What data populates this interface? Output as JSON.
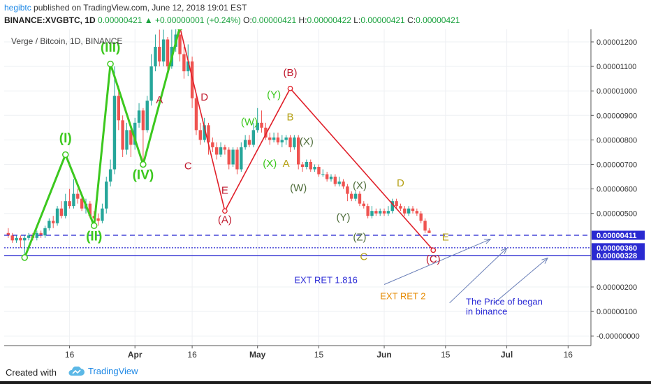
{
  "header": {
    "user": "hegibtc",
    "published": "published on TradingView.com, June 12, 2018 19:01 EST",
    "symbol": "BINANCE:XVGBTC, 1D",
    "last": "0.00000421",
    "change": "+0.00000001 (+0.24%)",
    "o_label": "O:",
    "o": "0.00000421",
    "h_label": "H:",
    "h": "0.00000422",
    "l_label": "L:",
    "l": "0.00000421",
    "c_label": "C:",
    "c": "0.00000421"
  },
  "footer": {
    "created_with": "Created with",
    "brand": "TradingView"
  },
  "chart_data": {
    "type": "candlestick",
    "title": "Verge / Bitcoin, 1D, BINANCE",
    "ylim": [
      -1e-07,
      1.25e-06
    ],
    "y_ticks": [
      "0.00001200",
      "0.00001100",
      "0.00001000",
      "0.00000900",
      "0.00000800",
      "0.00000700",
      "0.00000600",
      "0.00000500",
      "0.00000200",
      "0.00000100",
      "-0.00000000"
    ],
    "y_tick_values": [
      1.2e-05,
      1.1e-05,
      1e-05,
      9e-06,
      8e-06,
      7e-06,
      6e-06,
      5e-06,
      2e-06,
      1e-06,
      0.0
    ],
    "x_ticks": [
      "16",
      "Apr",
      "16",
      "May",
      "15",
      "Jun",
      "15",
      "Jul",
      "16"
    ],
    "x_tick_days": [
      16,
      32,
      46,
      62,
      77,
      93,
      108,
      123,
      138
    ],
    "price_levels": [
      {
        "label": "0.00000411",
        "value": 4.11e-06,
        "style": "dashed"
      },
      {
        "label": "0.00000360",
        "value": 3.6e-06,
        "style": "dotted"
      },
      {
        "label": "0.00000328",
        "value": 3.28e-06,
        "style": "solid"
      }
    ],
    "candles": [
      [
        1,
        4.2e-06,
        4.1e-06,
        4.4e-06,
        4e-06
      ],
      [
        2,
        4.1e-06,
        3.9e-06,
        4.2e-06,
        3.8e-06
      ],
      [
        3,
        3.9e-06,
        4e-06,
        4.1e-06,
        3.8e-06
      ],
      [
        4,
        4e-06,
        3.9e-06,
        4.1e-06,
        3.6e-06
      ],
      [
        5,
        3.9e-06,
        4e-06,
        4.1e-06,
        3.2e-06
      ],
      [
        6,
        4e-06,
        4.1e-06,
        4.2e-06,
        3.9e-06
      ],
      [
        7,
        4.1e-06,
        4e-06,
        4.2e-06,
        3.9e-06
      ],
      [
        8,
        4e-06,
        4.2e-06,
        4.3e-06,
        3.9e-06
      ],
      [
        9,
        4.2e-06,
        4.1e-06,
        4.3e-06,
        4e-06
      ],
      [
        10,
        4.1e-06,
        4.4e-06,
        4.5e-06,
        4e-06
      ],
      [
        11,
        4.4e-06,
        4.7e-06,
        4.8e-06,
        4.3e-06
      ],
      [
        12,
        4.7e-06,
        4.6e-06,
        4.9e-06,
        4.4e-06
      ],
      [
        13,
        4.6e-06,
        5.2e-06,
        5.3e-06,
        4.5e-06
      ],
      [
        14,
        5.2e-06,
        4.9e-06,
        5.5e-06,
        4.8e-06
      ],
      [
        15,
        4.9e-06,
        5.5e-06,
        5.8e-06,
        4.8e-06
      ],
      [
        16,
        5.5e-06,
        5.3e-06,
        6e-06,
        5.2e-06
      ],
      [
        17,
        5.3e-06,
        5.8e-06,
        6.4e-06,
        5.2e-06
      ],
      [
        18,
        5.8e-06,
        5.6e-06,
        6e-06,
        5.4e-06
      ],
      [
        19,
        5.6e-06,
        5.2e-06,
        5.8e-06,
        5.1e-06
      ],
      [
        20,
        5.2e-06,
        5.4e-06,
        5.6e-06,
        5e-06
      ],
      [
        21,
        5.4e-06,
        4.9e-06,
        5.5e-06,
        4.8e-06
      ],
      [
        22,
        4.9e-06,
        4.8e-06,
        5.1e-06,
        4.6e-06
      ],
      [
        23,
        4.8e-06,
        4.7e-06,
        5e-06,
        4.5e-06
      ],
      [
        24,
        4.7e-06,
        5.2e-06,
        5.4e-06,
        4.6e-06
      ],
      [
        25,
        5.2e-06,
        6.3e-06,
        6.5e-06,
        5e-06
      ],
      [
        26,
        6.3e-06,
        6.8e-06,
        7.2e-06,
        6.1e-06
      ],
      [
        27,
        6.8e-06,
        9.8e-06,
        1.1e-05,
        6.6e-06
      ],
      [
        28,
        9.8e-06,
        8.8e-06,
        1.02e-05,
        8.4e-06
      ],
      [
        29,
        8.8e-06,
        7.6e-06,
        9e-06,
        7.3e-06
      ],
      [
        30,
        7.6e-06,
        8.4e-06,
        8.7e-06,
        7.4e-06
      ],
      [
        31,
        8.4e-06,
        7.8e-06,
        8.6e-06,
        7.3e-06
      ],
      [
        32,
        7.8e-06,
        8.7e-06,
        8.9e-06,
        7.6e-06
      ],
      [
        33,
        8.7e-06,
        9.2e-06,
        9.5e-06,
        8.5e-06
      ],
      [
        34,
        9.2e-06,
        8.4e-06,
        9.3e-06,
        7.1e-06
      ],
      [
        35,
        8.4e-06,
        9.6e-06,
        9.8e-06,
        8.3e-06
      ],
      [
        36,
        9.6e-06,
        1.1e-05,
        1.15e-05,
        9.4e-06
      ],
      [
        37,
        1.1e-05,
        1.18e-05,
        1.23e-05,
        1.08e-05
      ],
      [
        38,
        1.18e-05,
        1.12e-05,
        1.25e-05,
        1.1e-05
      ],
      [
        39,
        1.12e-05,
        1.21e-05,
        1.25e-05,
        1.1e-05
      ],
      [
        40,
        1.21e-05,
        1.1e-05,
        1.22e-05,
        1.08e-05
      ],
      [
        41,
        1.1e-05,
        1.18e-05,
        1.25e-05,
        1.09e-05
      ],
      [
        42,
        1.18e-05,
        1.23e-05,
        1.28e-05,
        1.16e-05
      ],
      [
        43,
        1.23e-05,
        1.15e-05,
        1.26e-05,
        1.12e-05
      ],
      [
        44,
        1.15e-05,
        1.08e-05,
        1.18e-05,
        1.05e-05
      ],
      [
        45,
        1.08e-05,
        1.12e-05,
        1.19e-05,
        1.06e-05
      ],
      [
        46,
        1.12e-05,
        9.7e-06,
        1.14e-05,
        9.3e-06
      ],
      [
        47,
        9.7e-06,
        8.4e-06,
        9.9e-06,
        8.2e-06
      ],
      [
        48,
        8.4e-06,
        8e-06,
        8.7e-06,
        7.8e-06
      ],
      [
        49,
        8e-06,
        8.6e-06,
        8.9e-06,
        7.9e-06
      ],
      [
        50,
        8.6e-06,
        7.9e-06,
        8.7e-06,
        7.4e-06
      ],
      [
        51,
        7.9e-06,
        7.7e-06,
        8.1e-06,
        7.5e-06
      ],
      [
        52,
        7.7e-06,
        7.4e-06,
        7.9e-06,
        7.2e-06
      ],
      [
        53,
        7.4e-06,
        7.7e-06,
        7.9e-06,
        7.3e-06
      ],
      [
        54,
        7.7e-06,
        7.6e-06,
        7.8e-06,
        7.4e-06
      ],
      [
        55,
        7.6e-06,
        7e-06,
        7.7e-06,
        6.8e-06
      ],
      [
        56,
        7e-06,
        7.6e-06,
        7.7e-06,
        6.9e-06
      ],
      [
        57,
        7.6e-06,
        6.8e-06,
        7.7e-06,
        6.6e-06
      ],
      [
        58,
        6.8e-06,
        7.7e-06,
        7.9e-06,
        6.7e-06
      ],
      [
        59,
        7.7e-06,
        8e-06,
        8.2e-06,
        7.6e-06
      ],
      [
        60,
        8e-06,
        7.8e-06,
        8.2e-06,
        7.7e-06
      ],
      [
        61,
        7.8e-06,
        8.4e-06,
        8.7e-06,
        7.7e-06
      ],
      [
        62,
        8.4e-06,
        8.7e-06,
        9.3e-06,
        8.3e-06
      ],
      [
        63,
        8.7e-06,
        8.5e-06,
        9.2e-06,
        8.3e-06
      ],
      [
        64,
        8.5e-06,
        8.1e-06,
        8.7e-06,
        8e-06
      ],
      [
        65,
        8.1e-06,
        8e-06,
        8.3e-06,
        7.8e-06
      ],
      [
        66,
        8e-06,
        8.1e-06,
        8.3e-06,
        7.9e-06
      ],
      [
        67,
        8.1e-06,
        7.9e-06,
        8.3e-06,
        7.8e-06
      ],
      [
        68,
        7.9e-06,
        8e-06,
        8.2e-06,
        7.7e-06
      ],
      [
        69,
        8e-06,
        8.1e-06,
        8.2e-06,
        7.8e-06
      ],
      [
        70,
        8.1e-06,
        7.7e-06,
        8.2e-06,
        7.5e-06
      ],
      [
        71,
        7.7e-06,
        8.1e-06,
        8.2e-06,
        7.6e-06
      ],
      [
        72,
        8.1e-06,
        7e-06,
        8.2e-06,
        6.8e-06
      ],
      [
        73,
        7e-06,
        6.9e-06,
        7.1e-06,
        6.7e-06
      ],
      [
        74,
        6.9e-06,
        7.1e-06,
        7.2e-06,
        6.8e-06
      ],
      [
        75,
        7.1e-06,
        6.8e-06,
        7.2e-06,
        6.7e-06
      ],
      [
        76,
        6.8e-06,
        6.9e-06,
        7e-06,
        6.7e-06
      ],
      [
        77,
        6.9e-06,
        6.6e-06,
        7e-06,
        6.5e-06
      ],
      [
        78,
        6.6e-06,
        6.6e-06,
        6.8e-06,
        6.5e-06
      ],
      [
        79,
        6.6e-06,
        6.4e-06,
        6.7e-06,
        6.3e-06
      ],
      [
        80,
        6.4e-06,
        6.5e-06,
        6.6e-06,
        6.3e-06
      ],
      [
        81,
        6.5e-06,
        6.2e-06,
        6.6e-06,
        6.1e-06
      ],
      [
        82,
        6.2e-06,
        6.3e-06,
        6.5e-06,
        6.1e-06
      ],
      [
        83,
        6.3e-06,
        6.1e-06,
        6.4e-06,
        6e-06
      ],
      [
        84,
        6.1e-06,
        5.8e-06,
        6.2e-06,
        5.5e-06
      ],
      [
        85,
        5.8e-06,
        5.6e-06,
        5.9e-06,
        5.5e-06
      ],
      [
        86,
        5.6e-06,
        5.8e-06,
        5.9e-06,
        5.5e-06
      ],
      [
        87,
        5.8e-06,
        5.4e-06,
        5.9e-06,
        5.3e-06
      ],
      [
        88,
        5.4e-06,
        5.3e-06,
        5.5e-06,
        5.2e-06
      ],
      [
        89,
        5.3e-06,
        4.9e-06,
        5.4e-06,
        4.8e-06
      ],
      [
        90,
        4.9e-06,
        5.1e-06,
        5.3e-06,
        4.8e-06
      ],
      [
        91,
        5.1e-06,
        5e-06,
        5.2e-06,
        4.9e-06
      ],
      [
        92,
        5e-06,
        5.1e-06,
        5.2e-06,
        4.9e-06
      ],
      [
        93,
        5.1e-06,
        5e-06,
        5.2e-06,
        4.9e-06
      ],
      [
        94,
        5e-06,
        5.1e-06,
        5.3e-06,
        4.9e-06
      ],
      [
        95,
        5.1e-06,
        5.5e-06,
        5.6e-06,
        5e-06
      ],
      [
        96,
        5.5e-06,
        5.3e-06,
        5.6e-06,
        5.2e-06
      ],
      [
        97,
        5.3e-06,
        5.2e-06,
        5.4e-06,
        5.1e-06
      ],
      [
        98,
        5.2e-06,
        5e-06,
        5.3e-06,
        4.9e-06
      ],
      [
        99,
        5e-06,
        5.2e-06,
        5.3e-06,
        4.9e-06
      ],
      [
        100,
        5.2e-06,
        5.1e-06,
        5.3e-06,
        5e-06
      ],
      [
        101,
        5.1e-06,
        5e-06,
        5.2e-06,
        4.9e-06
      ],
      [
        102,
        5e-06,
        4.7e-06,
        5.1e-06,
        4.6e-06
      ],
      [
        103,
        4.7e-06,
        4.3e-06,
        4.8e-06,
        4.2e-06
      ],
      [
        104,
        4.3e-06,
        4.2e-06,
        4.4e-06,
        4.2e-06
      ]
    ],
    "green_wave": [
      [
        5,
        3.2e-06
      ],
      [
        15,
        7.4e-06
      ],
      [
        22,
        4.5e-06
      ],
      [
        26,
        1.11e-05
      ],
      [
        34,
        7e-06
      ],
      [
        43,
        1.26e-05
      ]
    ],
    "red_wave": [
      [
        43,
        1.26e-05
      ],
      [
        54,
        5.1e-06
      ],
      [
        70,
        1.01e-05
      ],
      [
        105,
        3.5e-06
      ]
    ],
    "annotations": [
      {
        "text": "(I)",
        "color": "#3cc81e",
        "size": 19,
        "day": 15,
        "value": 7.9e-06
      },
      {
        "text": "(II)",
        "color": "#3cc81e",
        "size": 19,
        "day": 22,
        "value": 3.9e-06
      },
      {
        "text": "(III)",
        "color": "#3cc81e",
        "size": 19,
        "day": 26,
        "value": 1.16e-05
      },
      {
        "text": "(IV)",
        "color": "#3cc81e",
        "size": 19,
        "day": 34,
        "value": 6.4e-06
      },
      {
        "text": "A",
        "color": "#c0192d",
        "size": 15,
        "day": 38,
        "value": 9.5e-06
      },
      {
        "text": "D",
        "color": "#c0192d",
        "size": 15,
        "day": 49,
        "value": 9.6e-06
      },
      {
        "text": "C",
        "color": "#c0192d",
        "size": 15,
        "day": 45,
        "value": 6.8e-06
      },
      {
        "text": "E",
        "color": "#c0192d",
        "size": 15,
        "day": 54,
        "value": 5.8e-06
      },
      {
        "text": "(A)",
        "color": "#c0192d",
        "size": 15,
        "day": 54,
        "value": 4.6e-06
      },
      {
        "text": "(B)",
        "color": "#c0192d",
        "size": 15,
        "day": 70,
        "value": 1.06e-05
      },
      {
        "text": "(C)",
        "color": "#c0192d",
        "size": 15,
        "day": 105,
        "value": 3e-06
      },
      {
        "text": "(W)",
        "color": "#3cc81e",
        "size": 15,
        "day": 60,
        "value": 8.6e-06
      },
      {
        "text": "(Y)",
        "color": "#3cc81e",
        "size": 15,
        "day": 66,
        "value": 9.7e-06
      },
      {
        "text": "(X)",
        "color": "#3cc81e",
        "size": 15,
        "day": 65,
        "value": 6.9e-06
      },
      {
        "text": "A",
        "color": "#b5a014",
        "size": 15,
        "day": 69,
        "value": 6.9e-06
      },
      {
        "text": "B",
        "color": "#b5a014",
        "size": 15,
        "day": 70,
        "value": 8.8e-06
      },
      {
        "text": "(X)",
        "color": "#506e3c",
        "size": 15,
        "day": 74,
        "value": 7.8e-06
      },
      {
        "text": "(W)",
        "color": "#506e3c",
        "size": 15,
        "day": 72,
        "value": 5.9e-06
      },
      {
        "text": "(X)",
        "color": "#506e3c",
        "size": 15,
        "day": 87,
        "value": 6e-06
      },
      {
        "text": "(Y)",
        "color": "#506e3c",
        "size": 15,
        "day": 83,
        "value": 4.7e-06
      },
      {
        "text": "(Z)",
        "color": "#506e3c",
        "size": 15,
        "day": 87,
        "value": 3.9e-06
      },
      {
        "text": "C",
        "color": "#b5a014",
        "size": 15,
        "day": 88,
        "value": 3.1e-06
      },
      {
        "text": "D",
        "color": "#b5a014",
        "size": 15,
        "day": 97,
        "value": 6.1e-06
      },
      {
        "text": "E",
        "color": "#b5a014",
        "size": 15,
        "day": 108,
        "value": 3.9e-06
      }
    ],
    "notes": [
      {
        "text": "EXT RET 1.816",
        "color": "#2b2bd6",
        "day": 71,
        "value": 2.16e-06
      },
      {
        "text": "EXT RET 2",
        "color": "#e58a00",
        "day": 92,
        "value": 1.5e-06
      },
      {
        "text": "The Price of began",
        "color": "#2b2bd6",
        "day": 113,
        "value": 1.28e-06
      },
      {
        "text": "in binance",
        "color": "#2b2bd6",
        "day": 113,
        "value": 8.7e-07
      }
    ],
    "arrows": [
      {
        "from": [
          93,
          2.1e-06
        ],
        "to": [
          119,
          3.95e-06
        ]
      },
      {
        "from": [
          109,
          1.35e-06
        ],
        "to": [
          123,
          3.58e-06
        ]
      },
      {
        "from": [
          120,
          1.35e-06
        ],
        "to": [
          133,
          3.18e-06
        ]
      }
    ],
    "colors": {
      "up": "#26a69a",
      "down": "#ef5350",
      "green_wave": "#3cc81e",
      "red_wave": "#e0202a",
      "levels": "#2a2ad1"
    }
  }
}
